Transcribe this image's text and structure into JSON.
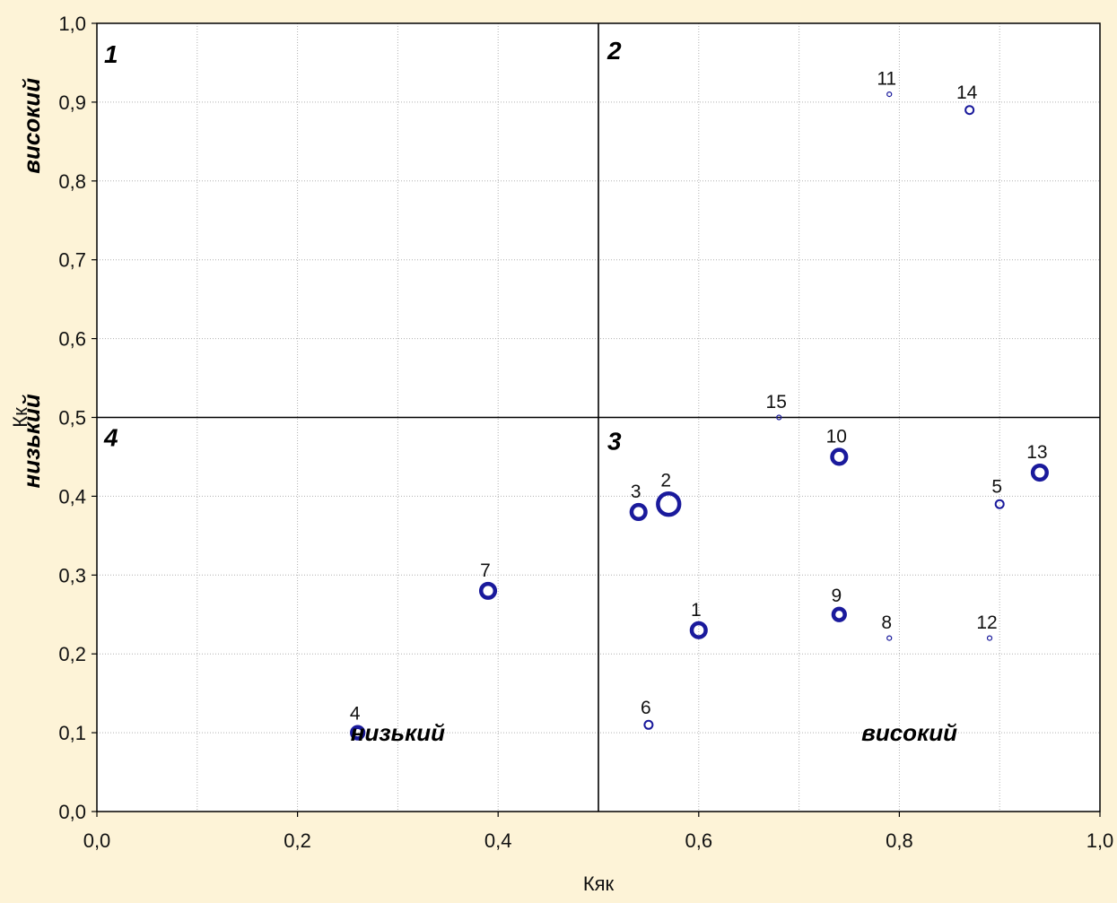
{
  "chart_data": {
    "type": "scatter",
    "subtype": "bubble",
    "title": "",
    "xlabel": "Кяк",
    "ylabel": "Кк",
    "xlim": [
      0.0,
      1.0
    ],
    "ylim": [
      0.0,
      1.0
    ],
    "x_ticks": [
      "0,0",
      "0,2",
      "0,4",
      "0,6",
      "0,8",
      "1,0"
    ],
    "y_ticks": [
      "0,0",
      "0,1",
      "0,2",
      "0,3",
      "0,4",
      "0,5",
      "0,6",
      "0,7",
      "0,8",
      "0,9",
      "1,0"
    ],
    "grid": true,
    "divider_lines": {
      "x": 0.5,
      "y": 0.5
    },
    "marker_color": "#1a1a9c",
    "points": [
      {
        "label": "1",
        "x": 0.6,
        "y": 0.23,
        "size": 3
      },
      {
        "label": "2",
        "x": 0.57,
        "y": 0.39,
        "size": 7
      },
      {
        "label": "3",
        "x": 0.54,
        "y": 0.38,
        "size": 3
      },
      {
        "label": "4",
        "x": 0.26,
        "y": 0.1,
        "size": 2
      },
      {
        "label": "5",
        "x": 0.9,
        "y": 0.39,
        "size": 1
      },
      {
        "label": "6",
        "x": 0.55,
        "y": 0.11,
        "size": 1
      },
      {
        "label": "7",
        "x": 0.39,
        "y": 0.28,
        "size": 3
      },
      {
        "label": "8",
        "x": 0.79,
        "y": 0.22,
        "size": 0.3
      },
      {
        "label": "9",
        "x": 0.74,
        "y": 0.25,
        "size": 2
      },
      {
        "label": "10",
        "x": 0.74,
        "y": 0.45,
        "size": 3
      },
      {
        "label": "11",
        "x": 0.79,
        "y": 0.91,
        "size": 0.3
      },
      {
        "label": "12",
        "x": 0.89,
        "y": 0.22,
        "size": 0.3
      },
      {
        "label": "13",
        "x": 0.94,
        "y": 0.43,
        "size": 3
      },
      {
        "label": "14",
        "x": 0.87,
        "y": 0.89,
        "size": 1
      },
      {
        "label": "15",
        "x": 0.68,
        "y": 0.5,
        "size": 0.3
      }
    ],
    "quadrant_labels": [
      "1",
      "2",
      "3",
      "4"
    ],
    "level_labels": {
      "y_high": "високий",
      "y_low": "низький",
      "x_low": "низький",
      "x_high": "високий"
    }
  }
}
